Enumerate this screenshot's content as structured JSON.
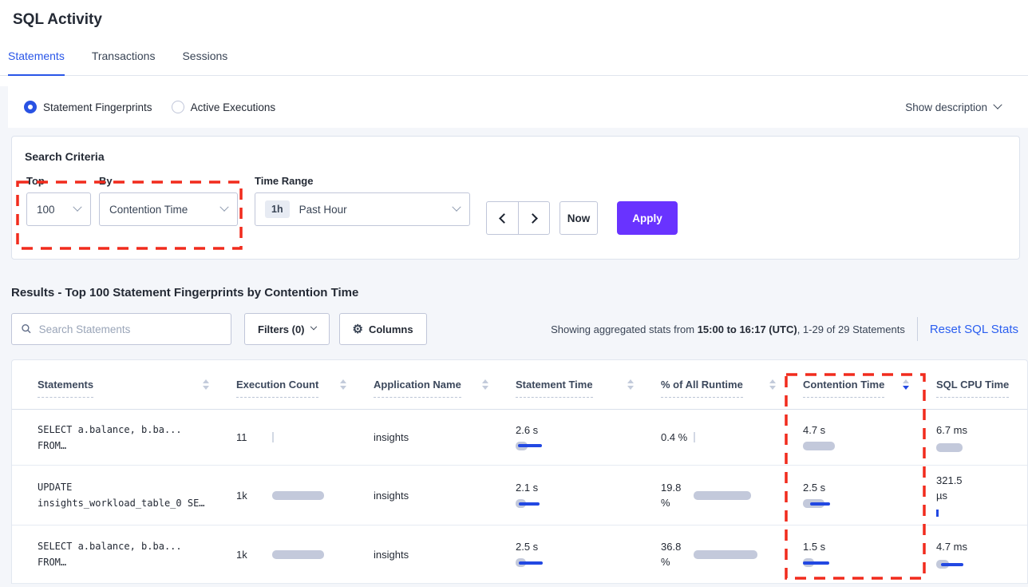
{
  "page": {
    "title": "SQL Activity"
  },
  "tabs": [
    {
      "label": "Statements",
      "active": true
    },
    {
      "label": "Transactions",
      "active": false
    },
    {
      "label": "Sessions",
      "active": false
    }
  ],
  "view_toggle": {
    "options": [
      {
        "label": "Statement Fingerprints",
        "selected": true
      },
      {
        "label": "Active Executions",
        "selected": false
      }
    ],
    "show_description_label": "Show description"
  },
  "search_criteria": {
    "heading": "Search Criteria",
    "top": {
      "label": "Top",
      "value": "100"
    },
    "by": {
      "label": "By",
      "value": "Contention Time"
    },
    "time_range": {
      "label": "Time Range",
      "badge": "1h",
      "value": "Past Hour"
    },
    "now_label": "Now",
    "apply_label": "Apply"
  },
  "results": {
    "heading": "Results - Top 100 Statement Fingerprints by Contention Time",
    "search_placeholder": "Search Statements",
    "filters_label": "Filters (0)",
    "columns_label": "Columns",
    "gear_glyph": "⚙",
    "showing_prefix": "Showing aggregated stats from ",
    "showing_bold": "15:00 to 16:17 (UTC)",
    "showing_suffix": ", 1-29 of 29 Statements",
    "reset_label": "Reset SQL Stats"
  },
  "table": {
    "headers": [
      "Statements",
      "Execution Count",
      "Application Name",
      "Statement Time",
      "% of All Runtime",
      "Contention Time",
      "SQL CPU Time"
    ],
    "sorted_column": "Contention Time",
    "sort_direction": "desc",
    "rows": [
      {
        "statement_line1": "SELECT a.balance, b.ba...",
        "statement_line2": "FROM…",
        "execution_count": "11",
        "application_name": "insights",
        "statement_time": "2.6 s",
        "pct_line1": "0.4 %",
        "pct_line2": "",
        "contention_time": "4.7 s",
        "cpu_line1": "6.7 ms",
        "cpu_line2": "",
        "bars": {
          "execution": {
            "tick": true
          },
          "statement_time": {
            "gray": 15,
            "blue": [
              3,
              30
            ]
          },
          "pct": {
            "tick": true
          },
          "contention": {
            "gray": 40
          },
          "cpu": {
            "gray": 33
          }
        }
      },
      {
        "statement_line1": "UPDATE",
        "statement_line2": "insights_workload_table_0 SE…",
        "execution_count": "1k",
        "application_name": "insights",
        "statement_time": "2.1 s",
        "pct_line1": "19.8",
        "pct_line2": "%",
        "contention_time": "2.5 s",
        "cpu_line1": "321.5",
        "cpu_line2": "µs",
        "bars": {
          "execution": {
            "gray": 65
          },
          "statement_time": {
            "gray": 13,
            "blue": [
              4,
              26
            ]
          },
          "pct": {
            "gray": 72
          },
          "contention": {
            "gray": 27,
            "blue": [
              9,
              25
            ]
          },
          "cpu": {
            "tick_blue": true
          }
        }
      },
      {
        "statement_line1": "SELECT a.balance, b.ba...",
        "statement_line2": "FROM…",
        "execution_count": "1k",
        "application_name": "insights",
        "statement_time": "2.5 s",
        "pct_line1": "36.8",
        "pct_line2": "%",
        "contention_time": "1.5 s",
        "cpu_line1": "4.7 ms",
        "cpu_line2": "",
        "bars": {
          "execution": {
            "gray": 65
          },
          "statement_time": {
            "gray": 13,
            "blue": [
              4,
              30
            ]
          },
          "pct": {
            "gray": 80
          },
          "contention": {
            "gray": 14,
            "blue": [
              0,
              33
            ]
          },
          "cpu": {
            "gray": 16,
            "blue": [
              6,
              28
            ]
          }
        }
      }
    ]
  },
  "colors": {
    "accent_blue": "#2956e8",
    "apply_purple": "#6933ff",
    "bar_gray": "#c3c9db",
    "bar_blue": "#2248e2",
    "annotation_red": "#f12b1d",
    "page_gray": "#f4f6fa"
  },
  "annotations": {
    "color": "#f12b1d",
    "boxes": [
      {
        "name": "top-by-criteria-highlight"
      },
      {
        "name": "contention-time-column-highlight"
      }
    ]
  }
}
